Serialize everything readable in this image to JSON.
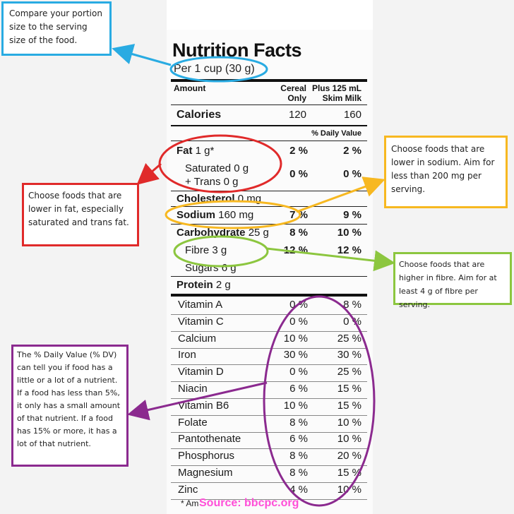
{
  "label": {
    "title": "Nutrition Facts",
    "serving": "Per 1 cup (30 g)",
    "amount_header": "Amount",
    "col1_header_line1": "Cereal",
    "col1_header_line2": "Only",
    "col2_header_line1": "Plus 125 mL",
    "col2_header_line2": "Skim Milk",
    "calories_label": "Calories",
    "calories_cereal": "120",
    "calories_milk": "160",
    "daily_value_header": "% Daily Value",
    "fat_label": "Fat",
    "fat_amount": "1 g*",
    "fat_cereal": "2 %",
    "fat_milk": "2 %",
    "saturated_label": "Saturated 0 g",
    "trans_label": "+ Trans 0 g",
    "sat_cereal": "0 %",
    "sat_milk": "0 %",
    "cholesterol_label": "Cholesterol",
    "cholesterol_amount": "0 mg",
    "sodium_label": "Sodium",
    "sodium_amount": "160 mg",
    "sodium_cereal": "7 %",
    "sodium_milk": "9 %",
    "carb_label": "Carbohydrate",
    "carb_amount": "25 g",
    "carb_cereal": "8 %",
    "carb_milk": "10 %",
    "fibre_label": "Fibre 3 g",
    "fibre_cereal": "12 %",
    "fibre_milk": "12 %",
    "sugars_label": "Sugars 6 g",
    "protein_label": "Protein",
    "protein_amount": "2 g",
    "vitamins": [
      {
        "name": "Vitamin A",
        "cereal": "0 %",
        "milk": "8 %"
      },
      {
        "name": "Vitamin C",
        "cereal": "0 %",
        "milk": "0 %"
      },
      {
        "name": "Calcium",
        "cereal": "10 %",
        "milk": "25 %"
      },
      {
        "name": "Iron",
        "cereal": "30 %",
        "milk": "30 %"
      },
      {
        "name": "Vitamin D",
        "cereal": "0 %",
        "milk": "25 %"
      },
      {
        "name": "Niacin",
        "cereal": "6 %",
        "milk": "15 %"
      },
      {
        "name": "Vitamin B6",
        "cereal": "10 %",
        "milk": "15 %"
      },
      {
        "name": "Folate",
        "cereal": "8 %",
        "milk": "10 %"
      },
      {
        "name": "Pantothenate",
        "cereal": "6 %",
        "milk": "10 %"
      },
      {
        "name": "Phosphorus",
        "cereal": "8 %",
        "milk": "20 %"
      },
      {
        "name": "Magnesium",
        "cereal": "8 %",
        "milk": "15 %"
      },
      {
        "name": "Zinc",
        "cereal": "4 %",
        "milk": "10 %"
      }
    ],
    "footnote_partial": "* Am"
  },
  "notes": {
    "portion": "Compare your portion size to the serving size of the food.",
    "fat": "Choose foods that are lower in fat, especially saturated and trans fat.",
    "sodium": "Choose foods that are lower in sodium. Aim for less than 200 mg per serving.",
    "fibre": "Choose foods that are higher in fibre. Aim for at least 4 g of fibre per serving.",
    "dv": "The % Daily Value (% DV) can tell you if food has a little or a lot of a nutrient. If a food has less than 5%, it only has a small amount of that nutrient. If a food has 15% or more, it has a lot of that nutrient."
  },
  "source": "Source: bbcpc.org",
  "colors": {
    "blue": "#29abe2",
    "red": "#e02a2a",
    "yellow": "#f7b821",
    "green": "#8cc63f",
    "purple": "#8b2a8f",
    "source_pink": "#ff4fd8"
  }
}
